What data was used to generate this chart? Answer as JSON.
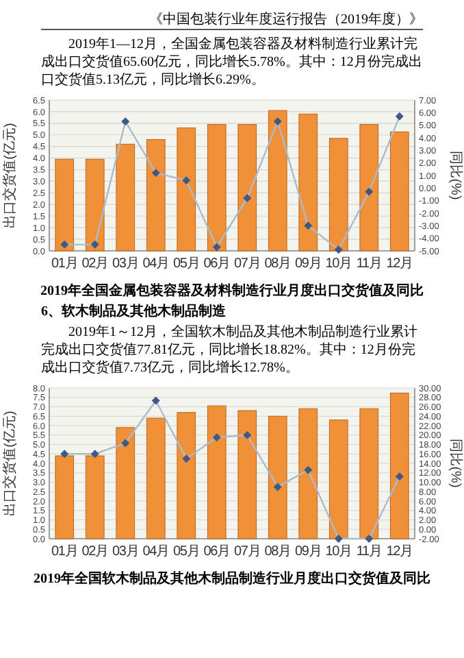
{
  "chart_data": [
    {
      "type": "bar",
      "title": "2019年全国金属包装容器及材料制造行业月度出口交货值及同比",
      "annotations": [
        "《中国包装行业年度运行报告（2019年度）》",
        "2019年1—12月，全国金属包装容器及材料制造行业累计完成出口交货值65.60亿元，同比增长5.78%。其中：12月份完成出口交货值5.13亿元，同比增长6.29%。"
      ],
      "ylabel": "出口交货值(亿元)",
      "y2label": "同比(%)",
      "categories": [
        "01月",
        "02月",
        "03月",
        "04月",
        "05月",
        "06月",
        "07月",
        "08月",
        "09月",
        "10月",
        "11月",
        "12月"
      ],
      "series": [
        {
          "color": "#f0913a",
          "values": [
            3.95,
            3.95,
            4.6,
            4.8,
            5.3,
            5.45,
            5.45,
            6.05,
            5.9,
            4.85,
            5.45,
            5.13
          ]
        },
        {
          "type": "line",
          "axis": "y2",
          "color": "#a9bccf",
          "marker": "diamond",
          "values": [
            -4.5,
            -4.5,
            5.3,
            1.2,
            0.6,
            -4.7,
            -0.8,
            5.3,
            -3.0,
            -4.9,
            -0.3,
            5.7
          ]
        }
      ],
      "ylim": [
        0,
        6.5
      ],
      "yticks": [
        {
          "value": 0,
          "label": "0.0"
        },
        0.5,
        {
          "value": 1,
          "label": "1.0"
        },
        1.5,
        {
          "value": 2,
          "label": "2.0"
        },
        2.5,
        {
          "value": 3,
          "label": "3.0"
        },
        3.5,
        {
          "value": 4,
          "label": "4.0"
        },
        4.5,
        {
          "value": 5,
          "label": "5.0"
        },
        5.5,
        {
          "value": 6,
          "label": "6.0"
        },
        6.5
      ],
      "y2lim": [
        -5,
        7
      ],
      "y2ticks": [
        {
          "value": -5,
          "label": "-5.00"
        },
        {
          "value": -4,
          "label": "-4.00"
        },
        {
          "value": -3,
          "label": "-3.00"
        },
        {
          "value": -2,
          "label": "-2.00"
        },
        {
          "value": -1,
          "label": "-1.00"
        },
        {
          "value": 0,
          "label": "0.00"
        },
        {
          "value": 1,
          "label": "1.00"
        },
        {
          "value": 2,
          "label": "2.00"
        },
        {
          "value": 3,
          "label": "3.00"
        },
        {
          "value": 4,
          "label": "4.00"
        },
        {
          "value": 5,
          "label": "5.00"
        },
        {
          "value": 6,
          "label": "6.00"
        },
        {
          "value": 7,
          "label": "7.00"
        }
      ],
      "grid": "y"
    },
    {
      "type": "bar",
      "title": "2019年全国软木制品及其他木制品制造行业月度出口交货值及同比",
      "annotations": [
        "6、软木制品及其他木制品制造",
        "2019年1～12月，全国软木制品及其他木制品制造行业累计完成出口交货值77.81亿元，同比增长18.82%。其中：12月份完成出口交货值7.73亿元，同比增长12.78%。"
      ],
      "ylabel": "出口交货值(亿元)",
      "y2label": "同比(%)",
      "categories": [
        "01月",
        "02月",
        "03月",
        "04月",
        "05月",
        "06月",
        "07月",
        "08月",
        "09月",
        "10月",
        "11月",
        "12月"
      ],
      "series": [
        {
          "color": "#f0913a",
          "values": [
            4.4,
            4.4,
            5.9,
            6.4,
            6.7,
            7.05,
            6.8,
            6.5,
            6.9,
            6.3,
            6.9,
            7.73
          ]
        },
        {
          "type": "line",
          "axis": "y2",
          "color": "#a9bccf",
          "marker": "diamond",
          "values": [
            16,
            16,
            18.3,
            27.3,
            15,
            19.5,
            20,
            9,
            12.6,
            -2,
            -2,
            11.2
          ]
        }
      ],
      "ylim": [
        0,
        8
      ],
      "yticks": [
        {
          "value": 0,
          "label": "0.0"
        },
        0.5,
        {
          "value": 1,
          "label": "1.0"
        },
        1.5,
        {
          "value": 2,
          "label": "2.0"
        },
        2.5,
        {
          "value": 3,
          "label": "3.0"
        },
        3.5,
        {
          "value": 4,
          "label": "4.0"
        },
        4.5,
        {
          "value": 5,
          "label": "5.0"
        },
        5.5,
        {
          "value": 6,
          "label": "6.0"
        },
        6.5,
        {
          "value": 7,
          "label": "7.0"
        },
        7.5,
        {
          "value": 8,
          "label": "8.0"
        }
      ],
      "y2lim": [
        -2,
        30
      ],
      "y2ticks": [
        {
          "value": -2,
          "label": "-2.00"
        },
        {
          "value": 0,
          "label": "0.00"
        },
        {
          "value": 2,
          "label": "2.00"
        },
        {
          "value": 4,
          "label": "4.00"
        },
        {
          "value": 6,
          "label": "6.00"
        },
        {
          "value": 8,
          "label": "8.00"
        },
        {
          "value": 10,
          "label": "10.00"
        },
        {
          "value": 12,
          "label": "12.00"
        },
        {
          "value": 14,
          "label": "14.00"
        },
        {
          "value": 16,
          "label": "16.00"
        },
        {
          "value": 18,
          "label": "18.00"
        },
        {
          "value": 20,
          "label": "20.00"
        },
        {
          "value": 22,
          "label": "22.00"
        },
        {
          "value": 24,
          "label": "24.00"
        },
        {
          "value": 26,
          "label": "26.00"
        },
        {
          "value": 28,
          "label": "28.00"
        },
        {
          "value": 30,
          "label": "30.00"
        }
      ],
      "grid": "y"
    }
  ]
}
